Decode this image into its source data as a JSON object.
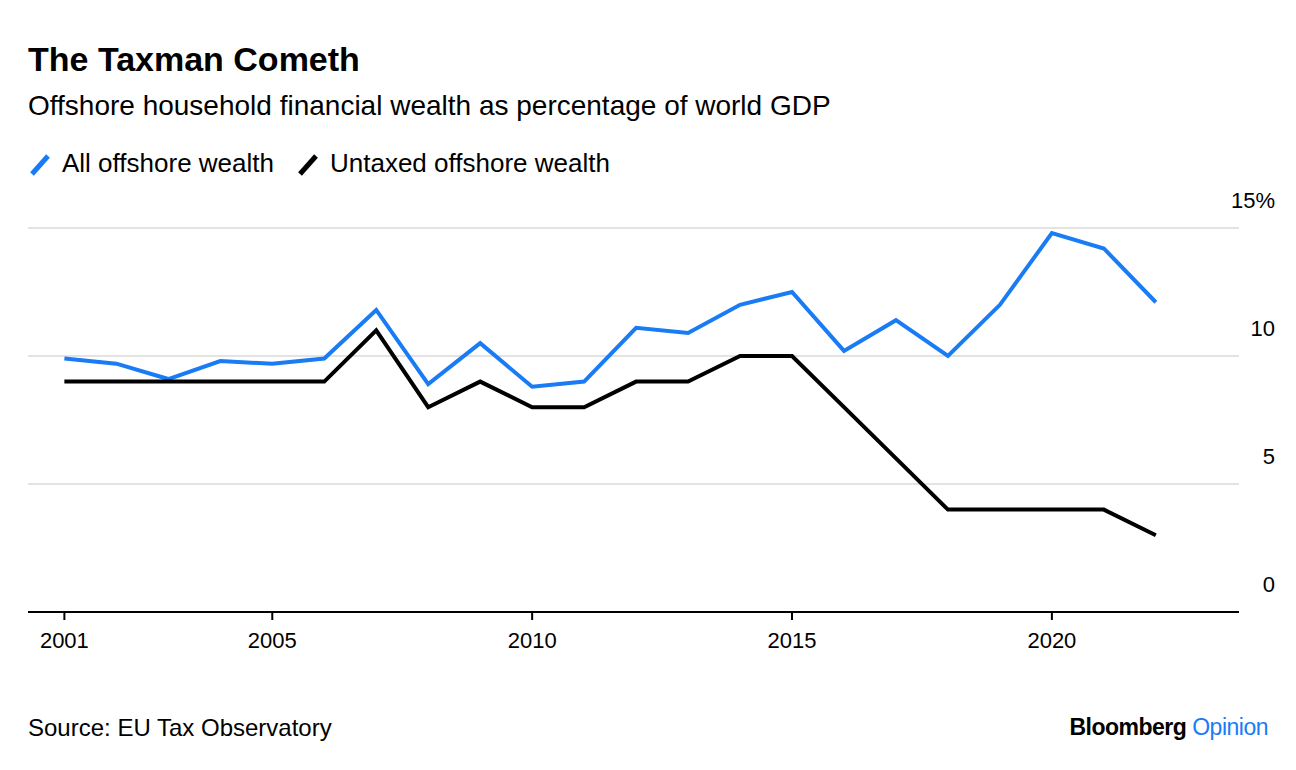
{
  "chart_data": {
    "type": "line",
    "title": "The Taxman Cometh",
    "subtitle": "Offshore household financial wealth as percentage of world GDP",
    "x": [
      2001,
      2002,
      2003,
      2004,
      2005,
      2006,
      2007,
      2008,
      2009,
      2010,
      2011,
      2012,
      2013,
      2014,
      2015,
      2016,
      2017,
      2018,
      2019,
      2020,
      2021,
      2022
    ],
    "series": [
      {
        "name": "All offshore wealth",
        "color": "#1a7cf5",
        "values": [
          9.9,
          9.7,
          9.1,
          9.8,
          9.7,
          9.9,
          11.8,
          8.9,
          10.5,
          8.8,
          9.0,
          11.1,
          10.9,
          12.0,
          12.5,
          10.2,
          11.4,
          10.0,
          12.0,
          14.8,
          14.2,
          12.1
        ]
      },
      {
        "name": "Untaxed offshore wealth",
        "color": "#000000",
        "values": [
          9,
          9,
          9,
          9,
          9,
          9,
          11,
          8,
          9,
          8,
          8,
          9,
          9,
          10,
          10,
          8,
          6,
          4,
          4,
          4,
          4,
          3
        ]
      }
    ],
    "xlim": [
      2000.3,
      2023.6
    ],
    "xticks": [
      2001,
      2005,
      2010,
      2015,
      2020
    ],
    "ylim": [
      0,
      15
    ],
    "yticks": [
      0,
      5,
      10,
      {
        "value": 15,
        "label": "15%"
      }
    ],
    "grid": true,
    "legend": "top-left",
    "source": "Source: EU Tax Observatory",
    "credit": "Bloomberg Opinion"
  }
}
